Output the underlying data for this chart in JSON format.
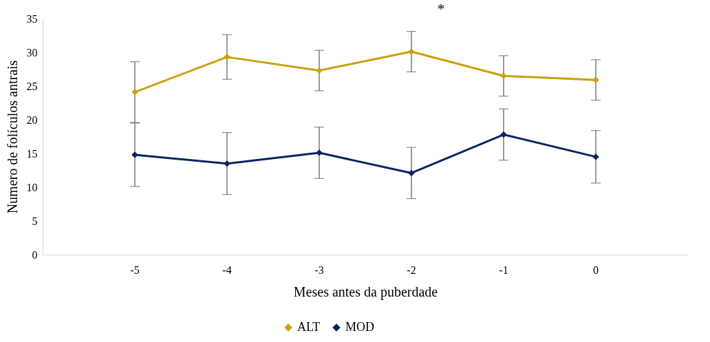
{
  "chart_data": {
    "type": "line",
    "xlabel": "Meses antes da puberdade",
    "ylabel": "Numero de folículos antrais",
    "categories": [
      "-5",
      "-4",
      "-3",
      "-2",
      "-1",
      "0"
    ],
    "series": [
      {
        "name": "ALT",
        "color": "#c9a00e",
        "values": [
          24.1,
          29.3,
          27.3,
          30.1,
          26.5,
          25.9
        ],
        "errors": [
          4.5,
          3.3,
          3.0,
          3.0,
          3.0,
          3.0
        ]
      },
      {
        "name": "MOD",
        "color": "#0b2461",
        "values": [
          14.8,
          13.5,
          15.1,
          12.1,
          17.8,
          14.5
        ],
        "errors": [
          4.7,
          4.6,
          3.8,
          3.8,
          3.8,
          3.9
        ]
      }
    ],
    "ylim": [
      0,
      35
    ],
    "yticks": [
      0,
      5,
      10,
      15,
      20,
      25,
      30,
      35
    ],
    "legend": "bottom",
    "marker": "diamond",
    "annotations": [
      "*"
    ]
  }
}
